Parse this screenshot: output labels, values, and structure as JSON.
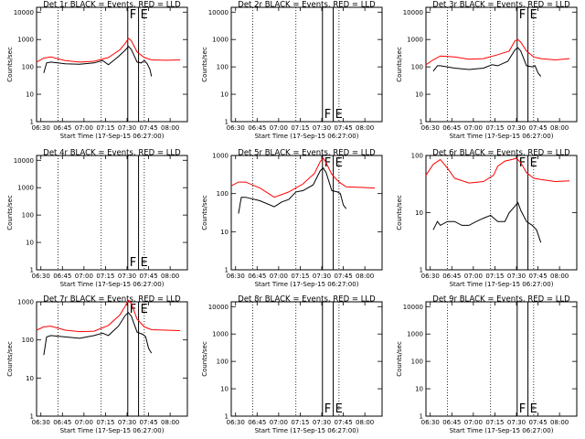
{
  "chart_data": {
    "type": "line",
    "x_tick_labels": [
      "06:30",
      "06:45",
      "07:00",
      "07:15",
      "07:30",
      "07:45",
      "08:00"
    ],
    "x_range_minutes": [
      0,
      105
    ],
    "xlabel": "Start Time (17-Sep-15 06:27:00)",
    "ylabel": "Counts/sec",
    "x_dotted_lines": [
      15,
      45,
      75
    ],
    "vertical_markers": [
      {
        "label": "F",
        "x": 63.5
      },
      {
        "label": "E",
        "x": 71
      }
    ],
    "series_colors": {
      "events": "#000000",
      "lld": "#ff0000"
    },
    "panels": [
      {
        "title": "Det 1r BLACK = Events, RED = LLD",
        "log": true,
        "yticks": [
          "1",
          "10",
          "100",
          "1000",
          "10000"
        ],
        "ylim": [
          1,
          15000
        ],
        "has_data": true,
        "lld": [
          [
            0,
            150
          ],
          [
            5,
            210
          ],
          [
            10,
            230
          ],
          [
            20,
            170
          ],
          [
            30,
            150
          ],
          [
            40,
            160
          ],
          [
            50,
            220
          ],
          [
            58,
            420
          ],
          [
            62,
            750
          ],
          [
            64,
            1100
          ],
          [
            66,
            900
          ],
          [
            70,
            350
          ],
          [
            75,
            220
          ],
          [
            80,
            180
          ],
          [
            90,
            175
          ],
          [
            100,
            180
          ]
        ],
        "events": [
          [
            5,
            60
          ],
          [
            7,
            140
          ],
          [
            10,
            150
          ],
          [
            20,
            130
          ],
          [
            30,
            125
          ],
          [
            40,
            140
          ],
          [
            46,
            170
          ],
          [
            50,
            120
          ],
          [
            57,
            240
          ],
          [
            62,
            420
          ],
          [
            64,
            560
          ],
          [
            66,
            430
          ],
          [
            70,
            150
          ],
          [
            73,
            140
          ],
          [
            75,
            170
          ],
          [
            77,
            130
          ],
          [
            79,
            80
          ],
          [
            80,
            45
          ]
        ]
      },
      {
        "title": "Det 2r BLACK = Events, RED = LLD",
        "log": true,
        "yticks": [
          "1",
          "10",
          "100",
          "1000",
          "10000"
        ],
        "ylim": [
          1,
          15000
        ],
        "has_data": false,
        "lld": [],
        "events": []
      },
      {
        "title": "Det 3r BLACK = Events, RED = LLD",
        "log": true,
        "yticks": [
          "1",
          "10",
          "100",
          "1000",
          "10000"
        ],
        "ylim": [
          1,
          15000
        ],
        "has_data": true,
        "lld": [
          [
            0,
            120
          ],
          [
            5,
            180
          ],
          [
            10,
            250
          ],
          [
            20,
            230
          ],
          [
            30,
            190
          ],
          [
            40,
            200
          ],
          [
            50,
            280
          ],
          [
            58,
            380
          ],
          [
            62,
            900
          ],
          [
            64,
            1000
          ],
          [
            66,
            800
          ],
          [
            70,
            380
          ],
          [
            75,
            230
          ],
          [
            80,
            200
          ],
          [
            90,
            180
          ],
          [
            100,
            200
          ]
        ],
        "events": [
          [
            5,
            70
          ],
          [
            8,
            110
          ],
          [
            10,
            110
          ],
          [
            20,
            90
          ],
          [
            30,
            80
          ],
          [
            40,
            90
          ],
          [
            46,
            120
          ],
          [
            50,
            110
          ],
          [
            57,
            160
          ],
          [
            62,
            420
          ],
          [
            64,
            500
          ],
          [
            66,
            380
          ],
          [
            70,
            110
          ],
          [
            74,
            100
          ],
          [
            76,
            110
          ],
          [
            78,
            60
          ],
          [
            80,
            45
          ]
        ]
      },
      {
        "title": "Det 4r BLACK = Events, RED = LLD",
        "log": true,
        "yticks": [
          "1",
          "10",
          "100",
          "1000",
          "10000"
        ],
        "ylim": [
          1,
          15000
        ],
        "has_data": false,
        "lld": [],
        "events": []
      },
      {
        "title": "Det 5r BLACK = Events, RED = LLD",
        "log": true,
        "yticks": [
          "1",
          "10",
          "100",
          "1000"
        ],
        "ylim": [
          1,
          1000
        ],
        "has_data": true,
        "lld": [
          [
            0,
            160
          ],
          [
            5,
            200
          ],
          [
            10,
            200
          ],
          [
            20,
            140
          ],
          [
            30,
            80
          ],
          [
            40,
            110
          ],
          [
            50,
            180
          ],
          [
            58,
            340
          ],
          [
            62,
            700
          ],
          [
            64,
            850
          ],
          [
            66,
            650
          ],
          [
            70,
            320
          ],
          [
            75,
            200
          ],
          [
            80,
            150
          ],
          [
            90,
            145
          ],
          [
            100,
            140
          ]
        ],
        "events": [
          [
            5,
            30
          ],
          [
            7,
            80
          ],
          [
            10,
            80
          ],
          [
            20,
            65
          ],
          [
            30,
            45
          ],
          [
            35,
            60
          ],
          [
            40,
            70
          ],
          [
            45,
            110
          ],
          [
            50,
            120
          ],
          [
            57,
            170
          ],
          [
            62,
            400
          ],
          [
            64,
            470
          ],
          [
            66,
            360
          ],
          [
            70,
            120
          ],
          [
            74,
            110
          ],
          [
            76,
            100
          ],
          [
            78,
            50
          ],
          [
            80,
            40
          ]
        ]
      },
      {
        "title": "Det 6r BLACK = Events, RED = LLD",
        "log": true,
        "yticks": [
          "1",
          "10",
          "100"
        ],
        "ylim": [
          1,
          100
        ],
        "has_data": true,
        "lld": [
          [
            0,
            45
          ],
          [
            5,
            70
          ],
          [
            10,
            85
          ],
          [
            15,
            60
          ],
          [
            20,
            40
          ],
          [
            30,
            33
          ],
          [
            40,
            35
          ],
          [
            47,
            45
          ],
          [
            50,
            65
          ],
          [
            55,
            80
          ],
          [
            60,
            85
          ],
          [
            63,
            90
          ],
          [
            66,
            75
          ],
          [
            70,
            50
          ],
          [
            75,
            40
          ],
          [
            80,
            38
          ],
          [
            90,
            35
          ],
          [
            100,
            36
          ]
        ],
        "events": [
          [
            5,
            5
          ],
          [
            8,
            7
          ],
          [
            10,
            6
          ],
          [
            15,
            7
          ],
          [
            20,
            7
          ],
          [
            25,
            6
          ],
          [
            30,
            6
          ],
          [
            35,
            7
          ],
          [
            40,
            8
          ],
          [
            45,
            9
          ],
          [
            50,
            7
          ],
          [
            55,
            7
          ],
          [
            58,
            10
          ],
          [
            62,
            13
          ],
          [
            64,
            15
          ],
          [
            66,
            11
          ],
          [
            70,
            7
          ],
          [
            74,
            6
          ],
          [
            77,
            5
          ],
          [
            80,
            3
          ]
        ]
      },
      {
        "title": "Det 7r BLACK = Events, RED = LLD",
        "log": true,
        "yticks": [
          "1",
          "10",
          "100",
          "1000"
        ],
        "ylim": [
          1,
          1000
        ],
        "has_data": true,
        "lld": [
          [
            0,
            180
          ],
          [
            5,
            220
          ],
          [
            10,
            230
          ],
          [
            20,
            180
          ],
          [
            30,
            165
          ],
          [
            40,
            170
          ],
          [
            50,
            240
          ],
          [
            58,
            450
          ],
          [
            62,
            800
          ],
          [
            64,
            1100
          ],
          [
            66,
            900
          ],
          [
            70,
            350
          ],
          [
            75,
            220
          ],
          [
            80,
            185
          ],
          [
            90,
            180
          ],
          [
            100,
            175
          ]
        ],
        "events": [
          [
            5,
            40
          ],
          [
            7,
            120
          ],
          [
            10,
            130
          ],
          [
            20,
            120
          ],
          [
            30,
            110
          ],
          [
            40,
            130
          ],
          [
            46,
            150
          ],
          [
            50,
            130
          ],
          [
            57,
            230
          ],
          [
            62,
            450
          ],
          [
            64,
            520
          ],
          [
            66,
            420
          ],
          [
            70,
            160
          ],
          [
            74,
            140
          ],
          [
            76,
            120
          ],
          [
            78,
            60
          ],
          [
            80,
            45
          ]
        ]
      },
      {
        "title": "Det 8r BLACK = Events, RED = LLD",
        "log": true,
        "yticks": [
          "1",
          "10",
          "100",
          "1000",
          "10000"
        ],
        "ylim": [
          1,
          15000
        ],
        "has_data": false,
        "lld": [],
        "events": []
      },
      {
        "title": "Det 9r BLACK = Events, RED = LLD",
        "log": true,
        "yticks": [
          "1",
          "10",
          "100",
          "1000",
          "10000"
        ],
        "ylim": [
          1,
          15000
        ],
        "has_data": false,
        "lld": [],
        "events": []
      }
    ]
  }
}
